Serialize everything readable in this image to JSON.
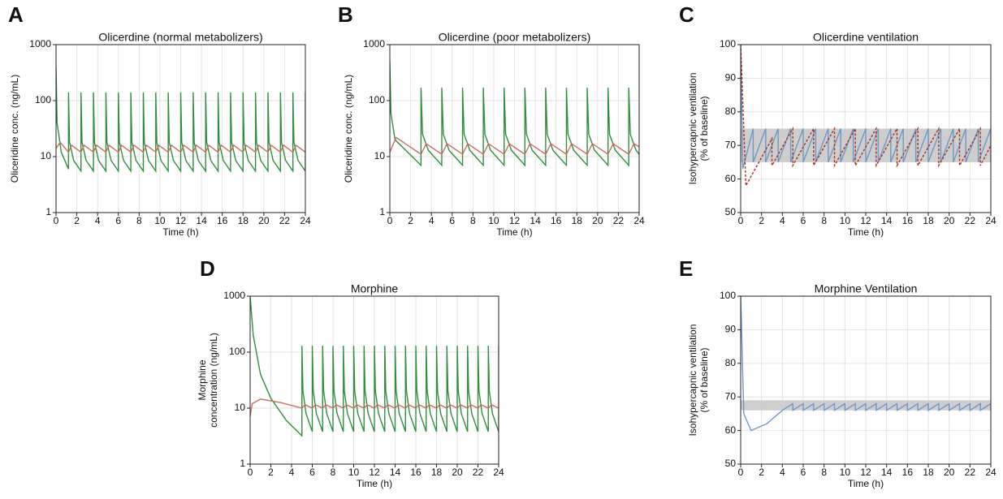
{
  "chart_data": [
    {
      "type": "line",
      "label": "A",
      "title": "Olicerdine (normal metabolizers)",
      "xlabel": "Time (h)",
      "ylabel": "Oliceridine conc. (ng/mL)",
      "log_scale": true,
      "grid": true,
      "xlim": [
        0,
        24
      ],
      "xticks": [
        0,
        2,
        4,
        6,
        8,
        10,
        12,
        14,
        16,
        18,
        20,
        22,
        24
      ],
      "ylim": [
        1,
        1000
      ],
      "yticks": [
        1,
        10,
        100,
        1000
      ],
      "series": [
        {
          "color": "#2f8f3e",
          "style": "solid",
          "x": [
            0,
            0.1,
            0.5,
            1.2,
            1.2,
            1.3,
            1.7,
            2.4,
            2.4,
            2.5,
            2.9,
            3.6,
            3.6,
            3.7,
            4.1,
            4.8,
            4.8,
            4.9,
            5.3,
            6,
            6,
            6.1,
            6.5,
            7.2,
            7.2,
            7.3,
            7.7,
            8.4,
            8.4,
            8.5,
            8.9,
            9.6,
            9.6,
            9.7,
            10.1,
            10.8,
            10.8,
            10.9,
            11.3,
            12,
            12,
            12.1,
            12.5,
            13.2,
            13.2,
            13.3,
            13.7,
            14.4,
            14.4,
            14.5,
            14.9,
            15.6,
            15.6,
            15.7,
            16.1,
            16.8,
            16.8,
            16.9,
            17.3,
            18,
            18,
            18.1,
            18.5,
            19.2,
            19.2,
            19.3,
            19.7,
            20.4,
            20.4,
            20.5,
            20.9,
            21.6,
            21.6,
            21.7,
            22.1,
            22.8,
            22.8,
            22.9,
            23.3,
            24,
            24
          ],
          "values": [
            400,
            40,
            12,
            6,
            140,
            18,
            8.5,
            5.5,
            140,
            18,
            8.5,
            5.5,
            140,
            18,
            8.5,
            5.5,
            140,
            18,
            8.5,
            5.5,
            140,
            18,
            8.5,
            5.5,
            140,
            18,
            8.5,
            5.5,
            140,
            18,
            8.5,
            5.5,
            140,
            18,
            8.5,
            5.5,
            140,
            18,
            8.5,
            5.5,
            140,
            18,
            8.5,
            5.5,
            140,
            18,
            8.5,
            5.5,
            140,
            18,
            8.5,
            5.5,
            140,
            18,
            8.5,
            5.5,
            140,
            18,
            8.5,
            5.5,
            140,
            18,
            8.5,
            5.5,
            140,
            18,
            8.5,
            5.5,
            140,
            18,
            8.5,
            5.5,
            140,
            18,
            8.5,
            5.5,
            140,
            18,
            8.5,
            5.5,
            140
          ]
        },
        {
          "color": "#c96b5e",
          "style": "solid",
          "x": [
            0,
            0.4,
            1.2,
            1.5,
            2.4,
            2.7,
            3.6,
            3.9,
            4.8,
            5.1,
            6,
            6.3,
            7.2,
            7.5,
            8.4,
            8.7,
            9.6,
            9.9,
            10.8,
            11.1,
            12,
            12.3,
            13.2,
            13.5,
            14.4,
            14.7,
            15.6,
            15.9,
            16.8,
            17.1,
            18,
            18.3,
            19.2,
            19.5,
            20.4,
            20.7,
            21.6,
            21.9,
            22.8,
            23.1,
            24
          ],
          "values": [
            14,
            18,
            12,
            16,
            12,
            16,
            12,
            16,
            12,
            16,
            12,
            16,
            12,
            16,
            12,
            16,
            12,
            16,
            12,
            16,
            12,
            16,
            12,
            16,
            12,
            16,
            12,
            16,
            12,
            16,
            12,
            16,
            12,
            16,
            12,
            16,
            12,
            16,
            12,
            16,
            12
          ]
        }
      ]
    },
    {
      "type": "line",
      "label": "B",
      "title": "Olicerdine (poor metabolizers)",
      "xlabel": "Time (h)",
      "ylabel": "Oliceridine conc. (ng/mL)",
      "log_scale": true,
      "grid": true,
      "xlim": [
        0,
        24
      ],
      "xticks": [
        0,
        2,
        4,
        6,
        8,
        10,
        12,
        14,
        16,
        18,
        20,
        22,
        24
      ],
      "ylim": [
        1,
        1000
      ],
      "yticks": [
        1,
        10,
        100,
        1000
      ],
      "series": [
        {
          "color": "#2f8f3e",
          "style": "solid",
          "x": [
            0,
            0.1,
            0.5,
            3,
            3,
            3.15,
            3.7,
            5,
            5,
            5.15,
            5.7,
            7,
            7,
            7.15,
            7.7,
            9,
            9,
            9.15,
            9.7,
            11,
            11,
            11.15,
            11.7,
            13,
            13,
            13.15,
            13.7,
            15,
            15,
            15.15,
            15.7,
            17,
            17,
            17.15,
            17.7,
            19,
            19,
            19.15,
            19.7,
            21,
            21,
            21.15,
            21.7,
            23,
            23,
            23.15,
            23.7,
            24
          ],
          "values": [
            500,
            60,
            20,
            7,
            170,
            25,
            13,
            7,
            170,
            25,
            13,
            7,
            170,
            25,
            13,
            7,
            170,
            25,
            13,
            7,
            170,
            25,
            13,
            7,
            170,
            25,
            13,
            7,
            170,
            25,
            13,
            7,
            170,
            25,
            13,
            7,
            170,
            25,
            13,
            7,
            170,
            25,
            13,
            7,
            170,
            25,
            13,
            11
          ]
        },
        {
          "color": "#c96b5e",
          "style": "solid",
          "x": [
            0,
            0.6,
            3,
            3.5,
            5,
            5.5,
            7,
            7.5,
            9,
            9.5,
            11,
            11.5,
            13,
            13.5,
            15,
            15.5,
            17,
            17.5,
            19,
            19.5,
            21,
            21.5,
            23,
            23.5,
            24
          ],
          "values": [
            12,
            22,
            11,
            17,
            11,
            17,
            11,
            17,
            11,
            17,
            11,
            17,
            11,
            17,
            11,
            17,
            11,
            17,
            11,
            17,
            11,
            17,
            11,
            17,
            15
          ]
        }
      ]
    },
    {
      "type": "line",
      "label": "C",
      "title": "Olicerdine ventilation",
      "xlabel": "Time (h)",
      "ylabel": [
        "Isohypercapnic ventilation",
        "(% of baseline)"
      ],
      "log_scale": false,
      "grid": true,
      "xlim": [
        0,
        24
      ],
      "xticks": [
        0,
        2,
        4,
        6,
        8,
        10,
        12,
        14,
        16,
        18,
        20,
        22,
        24
      ],
      "ylim": [
        50,
        100
      ],
      "yticks": [
        50,
        60,
        70,
        80,
        90,
        100
      ],
      "band": [
        65,
        75
      ],
      "band_color": "#c9c9c9",
      "series": [
        {
          "color": "#7097c9",
          "style": "solid",
          "x": [
            0,
            0.2,
            1.2,
            1.2,
            2.4,
            2.4,
            3.6,
            3.6,
            4.8,
            4.8,
            6,
            6,
            7.2,
            7.2,
            8.4,
            8.4,
            9.6,
            9.6,
            10.8,
            10.8,
            12,
            12,
            13.2,
            13.2,
            14.4,
            14.4,
            15.6,
            15.6,
            16.8,
            16.8,
            18,
            18,
            19.2,
            19.2,
            20.4,
            20.4,
            21.6,
            21.6,
            22.8,
            22.8,
            24,
            24
          ],
          "values": [
            100,
            63,
            75,
            65,
            75,
            65,
            75,
            65,
            75,
            65,
            75,
            65,
            75,
            65,
            75,
            65,
            75,
            65,
            75,
            65,
            75,
            65,
            75,
            65,
            75,
            65,
            75,
            65,
            75,
            65,
            75,
            65,
            75,
            65,
            75,
            65,
            75,
            65,
            75,
            65,
            75,
            65
          ]
        },
        {
          "color": "#a8321f",
          "style": "dashed",
          "x": [
            0,
            0.5,
            3,
            3,
            5,
            5,
            7,
            7,
            9,
            9,
            11,
            11,
            13,
            13,
            15,
            15,
            17,
            17,
            19,
            19,
            21,
            21,
            23,
            23,
            24
          ],
          "values": [
            100,
            58,
            72,
            64,
            75,
            64,
            75,
            64,
            75,
            64,
            75,
            64,
            75,
            64,
            75,
            64,
            75,
            64,
            75,
            64,
            75,
            64,
            75,
            64,
            70
          ]
        }
      ]
    },
    {
      "type": "line",
      "label": "D",
      "title": "Morphine",
      "xlabel": "Time (h)",
      "ylabel": [
        "Morphine",
        "concentration (ng/mL)"
      ],
      "log_scale": true,
      "grid": true,
      "xlim": [
        0,
        24
      ],
      "xticks": [
        0,
        2,
        4,
        6,
        8,
        10,
        12,
        14,
        16,
        18,
        20,
        22,
        24
      ],
      "ylim": [
        1,
        1000
      ],
      "yticks": [
        1,
        10,
        100,
        1000
      ],
      "series": [
        {
          "color": "#2f8f3e",
          "style": "solid",
          "x": [
            0,
            0.3,
            1,
            2,
            3.5,
            5,
            5,
            5.1,
            5.4,
            6,
            6,
            6.1,
            6.4,
            7,
            7,
            7.1,
            7.4,
            8,
            8,
            8.1,
            8.4,
            9,
            9,
            9.1,
            9.4,
            10,
            10,
            10.1,
            10.4,
            11,
            11,
            11.1,
            11.4,
            12,
            12,
            12.1,
            12.4,
            13,
            13,
            13.1,
            13.4,
            14,
            14,
            14.1,
            14.4,
            15,
            15,
            15.1,
            15.4,
            16,
            16,
            16.1,
            16.4,
            17,
            17,
            17.1,
            17.4,
            18,
            18,
            18.1,
            18.4,
            19,
            19,
            19.1,
            19.4,
            20,
            20,
            20.1,
            20.4,
            21,
            21,
            21.1,
            21.4,
            22,
            22,
            22.1,
            22.4,
            23,
            23,
            23.1,
            23.4,
            24,
            24
          ],
          "values": [
            1000,
            200,
            40,
            15,
            6,
            3.2,
            130,
            20,
            8,
            3.8,
            130,
            20,
            8,
            3.8,
            130,
            20,
            8,
            3.8,
            130,
            20,
            8,
            3.8,
            130,
            20,
            8,
            3.8,
            130,
            20,
            8,
            3.8,
            130,
            20,
            8,
            3.8,
            130,
            20,
            8,
            3.8,
            130,
            20,
            8,
            3.8,
            130,
            20,
            8,
            3.8,
            130,
            20,
            8,
            3.8,
            130,
            20,
            8,
            3.8,
            130,
            20,
            8,
            3.8,
            130,
            20,
            8,
            3.8,
            130,
            20,
            8,
            3.8,
            130,
            20,
            8,
            3.8,
            130,
            20,
            8,
            3.8,
            130,
            20,
            8,
            3.8,
            130,
            20,
            8,
            3.8,
            130
          ]
        },
        {
          "color": "#c96b5e",
          "style": "solid",
          "x": [
            0,
            0.2,
            1,
            3,
            5,
            5.3,
            6,
            6.3,
            7,
            7.3,
            8,
            8.3,
            9,
            9.3,
            10,
            10.3,
            11,
            11.3,
            12,
            12.3,
            13,
            13.3,
            14,
            14.3,
            15,
            15.3,
            16,
            16.3,
            17,
            17.3,
            18,
            18.3,
            19,
            19.3,
            20,
            20.3,
            21,
            21.3,
            22,
            22.3,
            23,
            23.3,
            24
          ],
          "values": [
            7,
            12,
            14.5,
            12.5,
            10,
            11.5,
            10,
            11.5,
            10,
            11.5,
            10,
            11.5,
            10,
            11.5,
            10,
            11.5,
            10,
            11.5,
            10,
            11.5,
            10,
            11.5,
            10,
            11.5,
            10,
            11.5,
            10,
            11.5,
            10,
            11.5,
            10,
            11.5,
            10,
            11.5,
            10,
            11.5,
            10,
            11.5,
            10,
            11.5,
            10,
            11.5,
            10
          ]
        }
      ]
    },
    {
      "type": "line",
      "label": "E",
      "title": "Morphine Ventilation",
      "xlabel": "Time (h)",
      "ylabel": [
        "Isohypercapnic ventilation",
        "(% of baseline)"
      ],
      "log_scale": false,
      "grid": true,
      "xlim": [
        0,
        24
      ],
      "xticks": [
        0,
        2,
        4,
        6,
        8,
        10,
        12,
        14,
        16,
        18,
        20,
        22,
        24
      ],
      "ylim": [
        50,
        100
      ],
      "yticks": [
        50,
        60,
        70,
        80,
        90,
        100
      ],
      "band": [
        66,
        69
      ],
      "band_color": "#c9c9c9",
      "series": [
        {
          "color": "#7097c9",
          "style": "solid",
          "x": [
            0,
            0.3,
            1,
            2.5,
            4,
            5,
            5,
            6,
            6,
            7,
            7,
            8,
            8,
            9,
            9,
            10,
            10,
            11,
            11,
            12,
            12,
            13,
            13,
            14,
            14,
            15,
            15,
            16,
            16,
            17,
            17,
            18,
            18,
            19,
            19,
            20,
            20,
            21,
            21,
            22,
            22,
            23,
            23,
            24,
            24
          ],
          "values": [
            100,
            65,
            60,
            62,
            66,
            68,
            66,
            68,
            66,
            68,
            66,
            68,
            66,
            68,
            66,
            68,
            66,
            68,
            66,
            68,
            66,
            68,
            66,
            68,
            66,
            68,
            66,
            68,
            66,
            68,
            66,
            68,
            66,
            68,
            66,
            68,
            66,
            68,
            66,
            68,
            66,
            68,
            66,
            68,
            66
          ]
        }
      ]
    }
  ]
}
